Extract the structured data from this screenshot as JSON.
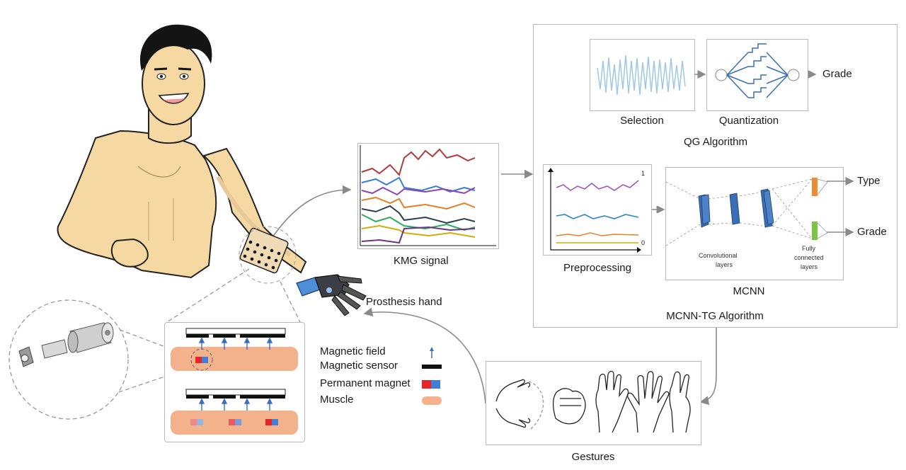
{
  "labels": {
    "kmg_signal": "KMG signal",
    "prosthesis_hand": "Prosthesis hand",
    "gestures": "Gestures",
    "selection": "Selection",
    "quantization": "Quantization",
    "qg_algorithm": "QG Algorithm",
    "grade_top": "Grade",
    "type": "Type",
    "grade_bottom": "Grade",
    "preprocessing": "Preprocessing",
    "mcnn": "MCNN",
    "mcnn_tg_algorithm": "MCNN-TG Algorithm",
    "convolutional_layers_1": "Convolutional",
    "convolutional_layers_2": "layers",
    "fully_connected_1": "Fully",
    "fully_connected_2": "connected",
    "fully_connected_3": "layers",
    "axis_one": "1",
    "axis_zero": "0"
  },
  "legend": {
    "magnetic_field": "Magnetic field",
    "magnetic_sensor": "Magnetic sensor",
    "permanent_magnet": "Permanent magnet",
    "muscle": "Muscle"
  },
  "colors": {
    "skin": "#f6d9a2",
    "muscle": "#f3b28c",
    "magnet_red": "#e8232a",
    "magnet_blue": "#3f7fd6",
    "arrow_blue": "#3b6fc4",
    "cnn_blue": "#3b6fb5",
    "fc_orange": "#f08a33",
    "fc_green": "#7cc544",
    "connector_gray": "#8a8a8a"
  },
  "icons": [
    "person-illustration",
    "sensor-array-icon",
    "prosthesis-hand-icon",
    "magnet-capsule-icon",
    "gesture-hand-icons"
  ]
}
